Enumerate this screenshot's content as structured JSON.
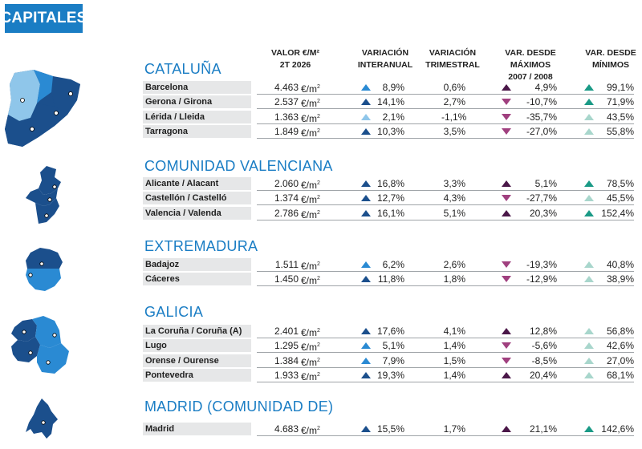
{
  "badge": "CAPITALES",
  "headers": {
    "valor": "VALOR €/M²",
    "valor2": "2T 2026",
    "interanual": "VARIACIÓN",
    "interanual2": "INTERANUAL",
    "trimestral": "VARIACIÓN",
    "trimestral2": "TRIMESTRAL",
    "maximos": "VAR. DESDE MÁXIMOS",
    "maximos2": "2007 / 2008",
    "minimos": "VAR. DESDE",
    "minimos2": "MÍNIMOS"
  },
  "unit": "€/m",
  "unit_sup": "2",
  "colors": {
    "badge": "#1a7dc4",
    "title": "#1a7dc4",
    "dark_blue": "#1b4f8c",
    "mid_blue": "#2a8ad3",
    "light_blue": "#8fc6ea",
    "magenta": "#a0407f",
    "purple": "#4a1748",
    "teal": "#1a9a86",
    "light_teal": "#a8d6cc"
  },
  "regions": [
    {
      "name": "CATALUÑA",
      "map_icon": "cataluna-map-icon",
      "rows": [
        {
          "city": "Barcelona",
          "value": "4.463",
          "inter": "8,9%",
          "inter_dir": "up",
          "inter_color": "#2a8ad3",
          "trim": "0,6%",
          "max": "4,9%",
          "max_dir": "up",
          "max_color": "#4a1748",
          "min": "99,1%",
          "min_color": "#1a9a86"
        },
        {
          "city": "Gerona / Girona",
          "value": "2.537",
          "inter": "14,1%",
          "inter_dir": "up",
          "inter_color": "#1b4f8c",
          "trim": "2,7%",
          "max": "-10,7%",
          "max_dir": "down",
          "max_color": "#a0407f",
          "min": "71,9%",
          "min_color": "#1a9a86"
        },
        {
          "city": "Lérida / Lleida",
          "value": "1.363",
          "inter": "2,1%",
          "inter_dir": "up",
          "inter_color": "#8fc6ea",
          "trim": "-1,1%",
          "max": "-35,7%",
          "max_dir": "down",
          "max_color": "#a0407f",
          "min": "43,5%",
          "min_color": "#a8d6cc"
        },
        {
          "city": "Tarragona",
          "value": "1.849",
          "inter": "10,3%",
          "inter_dir": "up",
          "inter_color": "#1b4f8c",
          "trim": "3,5%",
          "max": "-27,0%",
          "max_dir": "down",
          "max_color": "#a0407f",
          "min": "55,8%",
          "min_color": "#a8d6cc"
        }
      ]
    },
    {
      "name": "COMUNIDAD VALENCIANA",
      "map_icon": "valencia-map-icon",
      "rows": [
        {
          "city": "Alicante / Alacant",
          "value": "2.060",
          "inter": "16,8%",
          "inter_dir": "up",
          "inter_color": "#1b4f8c",
          "trim": "3,3%",
          "max": "5,1%",
          "max_dir": "up",
          "max_color": "#4a1748",
          "min": "78,5%",
          "min_color": "#1a9a86"
        },
        {
          "city": "Castellón / Castelló",
          "value": "1.374",
          "inter": "12,7%",
          "inter_dir": "up",
          "inter_color": "#1b4f8c",
          "trim": "4,3%",
          "max": "-27,7%",
          "max_dir": "down",
          "max_color": "#a0407f",
          "min": "45,5%",
          "min_color": "#a8d6cc"
        },
        {
          "city": "Valencia / Valenda",
          "value": "2.786",
          "inter": "16,1%",
          "inter_dir": "up",
          "inter_color": "#1b4f8c",
          "trim": "5,1%",
          "max": "20,3%",
          "max_dir": "up",
          "max_color": "#4a1748",
          "min": "152,4%",
          "min_color": "#1a9a86"
        }
      ]
    },
    {
      "name": "EXTREMADURA",
      "map_icon": "extremadura-map-icon",
      "rows": [
        {
          "city": "Badajoz",
          "value": "1.511",
          "inter": "6,2%",
          "inter_dir": "up",
          "inter_color": "#2a8ad3",
          "trim": "2,6%",
          "max": "-19,3%",
          "max_dir": "down",
          "max_color": "#a0407f",
          "min": "40,8%",
          "min_color": "#a8d6cc"
        },
        {
          "city": "Cáceres",
          "value": "1.450",
          "inter": "11,8%",
          "inter_dir": "up",
          "inter_color": "#1b4f8c",
          "trim": "1,8%",
          "max": "-12,9%",
          "max_dir": "down",
          "max_color": "#a0407f",
          "min": "38,9%",
          "min_color": "#a8d6cc"
        }
      ]
    },
    {
      "name": "GALICIA",
      "map_icon": "galicia-map-icon",
      "rows": [
        {
          "city": "La Coruña / Coruña (A)",
          "value": "2.401",
          "inter": "17,6%",
          "inter_dir": "up",
          "inter_color": "#1b4f8c",
          "trim": "4,1%",
          "max": "12,8%",
          "max_dir": "up",
          "max_color": "#4a1748",
          "min": "56,8%",
          "min_color": "#a8d6cc"
        },
        {
          "city": "Lugo",
          "value": "1.295",
          "inter": "5,1%",
          "inter_dir": "up",
          "inter_color": "#2a8ad3",
          "trim": "1,4%",
          "max": "-5,6%",
          "max_dir": "down",
          "max_color": "#a0407f",
          "min": "42,6%",
          "min_color": "#a8d6cc"
        },
        {
          "city": "Orense / Ourense",
          "value": "1.384",
          "inter": "7,9%",
          "inter_dir": "up",
          "inter_color": "#2a8ad3",
          "trim": "1,5%",
          "max": "-8,5%",
          "max_dir": "down",
          "max_color": "#a0407f",
          "min": "27,0%",
          "min_color": "#a8d6cc"
        },
        {
          "city": "Pontevedra",
          "value": "1.933",
          "inter": "19,3%",
          "inter_dir": "up",
          "inter_color": "#1b4f8c",
          "trim": "1,4%",
          "max": "20,4%",
          "max_dir": "up",
          "max_color": "#4a1748",
          "min": "68,1%",
          "min_color": "#a8d6cc"
        }
      ]
    },
    {
      "name": "MADRID (COMUNIDAD DE)",
      "map_icon": "madrid-map-icon",
      "rows": [
        {
          "city": "Madrid",
          "value": "4.683",
          "inter": "15,5%",
          "inter_dir": "up",
          "inter_color": "#1b4f8c",
          "trim": "1,7%",
          "max": "21,1%",
          "max_dir": "up",
          "max_color": "#4a1748",
          "min": "142,6%",
          "min_color": "#1a9a86"
        }
      ]
    }
  ]
}
